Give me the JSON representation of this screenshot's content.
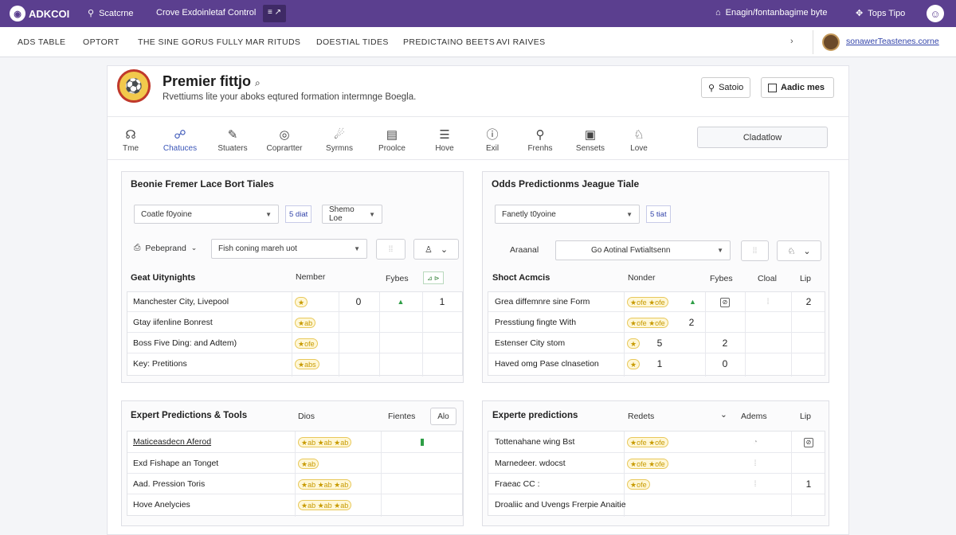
{
  "topbar": {
    "brand": "ADKCOI",
    "search_label": "Scatcrne",
    "title": "Crove Exdoinletaf Control",
    "badge": "≡ ↗",
    "user_label": "Enagin/fontanbagime byte",
    "tips_label": "Tops Tipo"
  },
  "nav": {
    "items": [
      "ADS TABLE",
      "OPTORT",
      "THE SINE GORUS FULLY",
      "MAR RITUDS",
      "DOESTIAL TIDES",
      "PREDICTAINO BEETS",
      "AVI RAIVES"
    ],
    "link": "sonawerTeastenes.corne"
  },
  "header": {
    "title": "Premier fittjo",
    "title_suffix": "⌕",
    "subtitle": "Rvettiums lite your aboks eqtured formation intermnge Boegla.",
    "btn_studio": "Satoio",
    "btn_add": "Aadic mes"
  },
  "tools": [
    {
      "icon": "☊",
      "label": "Tme",
      "active": false
    },
    {
      "icon": "☍",
      "label": "Chatuces",
      "active": true
    },
    {
      "icon": "✎",
      "label": "Stuaters",
      "active": false
    },
    {
      "icon": "◎",
      "label": "Coprartter",
      "active": false
    },
    {
      "icon": "☄",
      "label": "Syrmns",
      "active": false
    },
    {
      "icon": "▤",
      "label": "Proolce",
      "active": false
    },
    {
      "icon": "☰",
      "label": "Hove",
      "active": false
    },
    {
      "icon": "ⓘ",
      "label": "Exil",
      "active": false
    },
    {
      "icon": "⚲",
      "label": "Frenhs",
      "active": false
    },
    {
      "icon": "▣",
      "label": "Sensets",
      "active": false
    },
    {
      "icon": "♘",
      "label": "Love",
      "active": false
    }
  ],
  "dashboard_btn": "Cladatlow",
  "panel_left": {
    "title": "Beonie Fremer Lace Bort Tiales",
    "select1": "Coatle f0yoine",
    "link1": "5 diat",
    "select2": "Shemo Loe",
    "label_icon_text": "Pebeprand",
    "select3": "Fish coning mareh uot",
    "head": {
      "c1": "Geat Uitynights",
      "c2": "Nember",
      "c3": "Fybes",
      "c4": "⊿ ⊳"
    },
    "rows": [
      {
        "name": "Manchester City, Livepool",
        "stars": "★",
        "a": "0",
        "b": "▲",
        "c": "1"
      },
      {
        "name": "Gtay iifenline Bonrest",
        "stars": "★ab",
        "a": "",
        "b": "",
        "c": ""
      },
      {
        "name": "Boss Five Ding: and Adtem)",
        "stars": "★ofe",
        "a": "",
        "b": "",
        "c": ""
      },
      {
        "name": "Key: Pretitions",
        "stars": "★abs",
        "a": "",
        "b": "",
        "c": ""
      }
    ]
  },
  "panel_right": {
    "title": "Odds Predictionms Jeague Tiale",
    "select1": "Fanetly t0yoine",
    "link1": "5 tiat",
    "label_text": "Araanal",
    "select2": "Go Aotinal Fwtialtsenn",
    "head": {
      "c1": "Shoct Acmcis",
      "c2": "Nonder",
      "c3": "Fybes",
      "c4": "Cloal",
      "c5": "Lip"
    },
    "rows": [
      {
        "name": "Grea diffemnre sine Form",
        "stars": "★ofe ★ofe",
        "tri": "▲",
        "a": "",
        "icon": "⊘",
        "b": "⁞",
        "c": "2"
      },
      {
        "name": "Presstiung fingte With",
        "stars": "★ofe ★ofe",
        "tri": "",
        "a": "2",
        "icon": "",
        "b": "",
        "c": ""
      },
      {
        "name": "Estenser City stom",
        "stars": "★",
        "tri": "",
        "a": "5",
        "icon": "",
        "b": "2",
        "c": ""
      },
      {
        "name": "Haved omg Pase clnasetion",
        "stars": "★",
        "tri": "",
        "a": "1",
        "icon": "",
        "b": "0",
        "c": ""
      }
    ]
  },
  "panel_bl": {
    "title": "Expert Predictions & Tools",
    "h2": "Dios",
    "h3": "Fientes",
    "btn": "Alo",
    "rows": [
      {
        "name": "Maticeasdecn Aferod",
        "stars": "★ab ★ab ★ab",
        "mark": "bar"
      },
      {
        "name": "Exd Fishape an Tonget",
        "stars": "★ab",
        "mark": ""
      },
      {
        "name": "Aad. Pression Toris",
        "stars": "★ab ★ab ★ab",
        "mark": ""
      },
      {
        "name": "Hove Anelycies",
        "stars": "★ab ★ab ★ab",
        "mark": ""
      }
    ]
  },
  "panel_br": {
    "title": "Experte predictions",
    "h2": "Redets",
    "h3": "Adems",
    "h4": "Lip",
    "rows": [
      {
        "name": "Tottenahane wing Bst",
        "stars": "★ofe ★ofe",
        "a": "◔",
        "b": "⊘"
      },
      {
        "name": "Marnedeer. wdocst",
        "stars": "★ofe ★ofe",
        "a": "⁞",
        "b": ""
      },
      {
        "name": "Fraeac CC :",
        "stars": "★ofe",
        "a": "⁞",
        "b": "1"
      },
      {
        "name": "Droaliic and Uvengs Frerpie Anaitie",
        "stars": "",
        "a": "",
        "b": ""
      }
    ]
  }
}
